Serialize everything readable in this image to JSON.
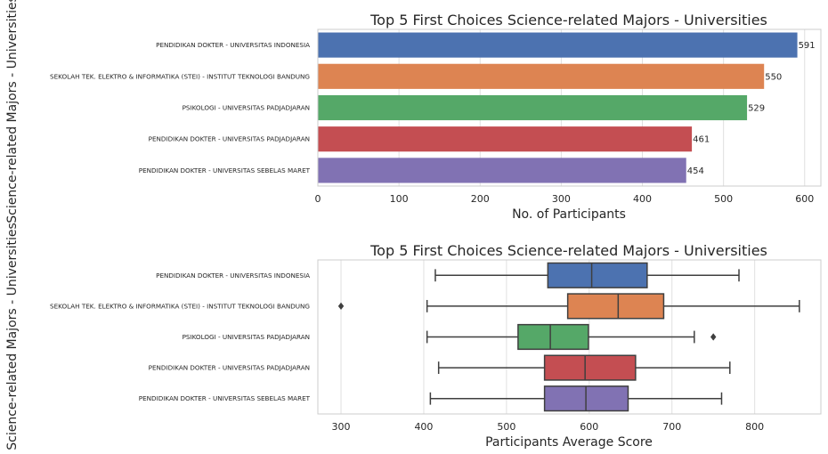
{
  "colors": {
    "series": [
      "#4c72b0",
      "#dd8452",
      "#55a868",
      "#c44e52",
      "#8172b3"
    ],
    "box_series": [
      "#4c72b0",
      "#dd8452",
      "#55a868",
      "#c44e52",
      "#8172b3"
    ],
    "grid": "#e0e0e0",
    "frame": "#cccccc",
    "whisker": "#3f3f3f"
  },
  "chart_data": [
    {
      "type": "bar",
      "orientation": "horizontal",
      "title": "Top 5 First Choices Science-related Majors - Universities",
      "xlabel": "No. of Participants",
      "ylabel": "Science-related Majors - Universities",
      "categories": [
        "PENDIDIKAN DOKTER - UNIVERSITAS INDONESIA",
        "SEKOLAH TEK. ELEKTRO & INFORMATIKA (STEI) - INSTITUT TEKNOLOGI BANDUNG",
        "PSIKOLOGI - UNIVERSITAS PADJADJARAN",
        "PENDIDIKAN DOKTER - UNIVERSITAS PADJADJARAN",
        "PENDIDIKAN DOKTER - UNIVERSITAS SEBELAS MARET"
      ],
      "values": [
        591,
        550,
        529,
        461,
        454
      ],
      "data_labels": [
        "591",
        "550",
        "529",
        "461",
        "454"
      ],
      "xlim": [
        0,
        620
      ],
      "xticks": [
        "0",
        "100",
        "200",
        "300",
        "400",
        "500",
        "600"
      ],
      "grid": "x"
    },
    {
      "type": "box",
      "orientation": "horizontal",
      "title": "Top 5 First Choices Science-related Majors - Universities",
      "xlabel": "Participants Average Score",
      "ylabel": "Science-related Majors - Universities",
      "categories": [
        "PENDIDIKAN DOKTER - UNIVERSITAS INDONESIA",
        "SEKOLAH TEK. ELEKTRO & INFORMATIKA (STEI) - INSTITUT TEKNOLOGI BANDUNG",
        "PSIKOLOGI - UNIVERSITAS PADJADJARAN",
        "PENDIDIKAN DOKTER - UNIVERSITAS PADJADJARAN",
        "PENDIDIKAN DOKTER - UNIVERSITAS SEBELAS MARET"
      ],
      "boxes": [
        {
          "whislo": 414,
          "q1": 550,
          "med": 603,
          "q3": 670,
          "whishi": 781,
          "fliers": []
        },
        {
          "whislo": 404,
          "q1": 574,
          "med": 635,
          "q3": 690,
          "whishi": 854,
          "fliers": [
            300
          ]
        },
        {
          "whislo": 404,
          "q1": 514,
          "med": 553,
          "q3": 599,
          "whishi": 727,
          "fliers": [
            750
          ]
        },
        {
          "whislo": 418,
          "q1": 546,
          "med": 595,
          "q3": 656,
          "whishi": 770,
          "fliers": []
        },
        {
          "whislo": 408,
          "q1": 546,
          "med": 596,
          "q3": 647,
          "whishi": 760,
          "fliers": []
        }
      ],
      "xlim": [
        272,
        880
      ],
      "xticks": [
        "300",
        "400",
        "500",
        "600",
        "700",
        "800"
      ],
      "grid": "x"
    }
  ]
}
